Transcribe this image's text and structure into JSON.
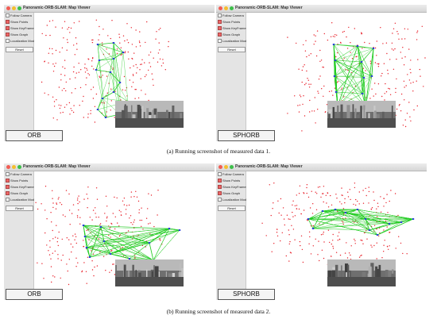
{
  "window_title": "Panoramic-ORB-SLAM: Map Viewer",
  "options": [
    {
      "label": "Follow Camera",
      "checked": false
    },
    {
      "label": "Show Points",
      "checked": true
    },
    {
      "label": "Show KeyFrames",
      "checked": true
    },
    {
      "label": "Show Graph",
      "checked": true
    },
    {
      "label": "Localization Mode",
      "checked": false
    }
  ],
  "reset_label": "Reset",
  "viewers": [
    {
      "method": "ORB",
      "style": "loop"
    },
    {
      "method": "SPHORB",
      "style": "dense"
    },
    {
      "method": "ORB",
      "style": "fan"
    },
    {
      "method": "SPHORB",
      "style": "fan2"
    }
  ],
  "captions": [
    "(a)  Running screenshot of measured data 1.",
    "(b)  Running screenshot of measured data 2."
  ],
  "colors": {
    "points": "#e8202a",
    "keyframes": "#2a3fd8",
    "graph": "#22cc22"
  }
}
